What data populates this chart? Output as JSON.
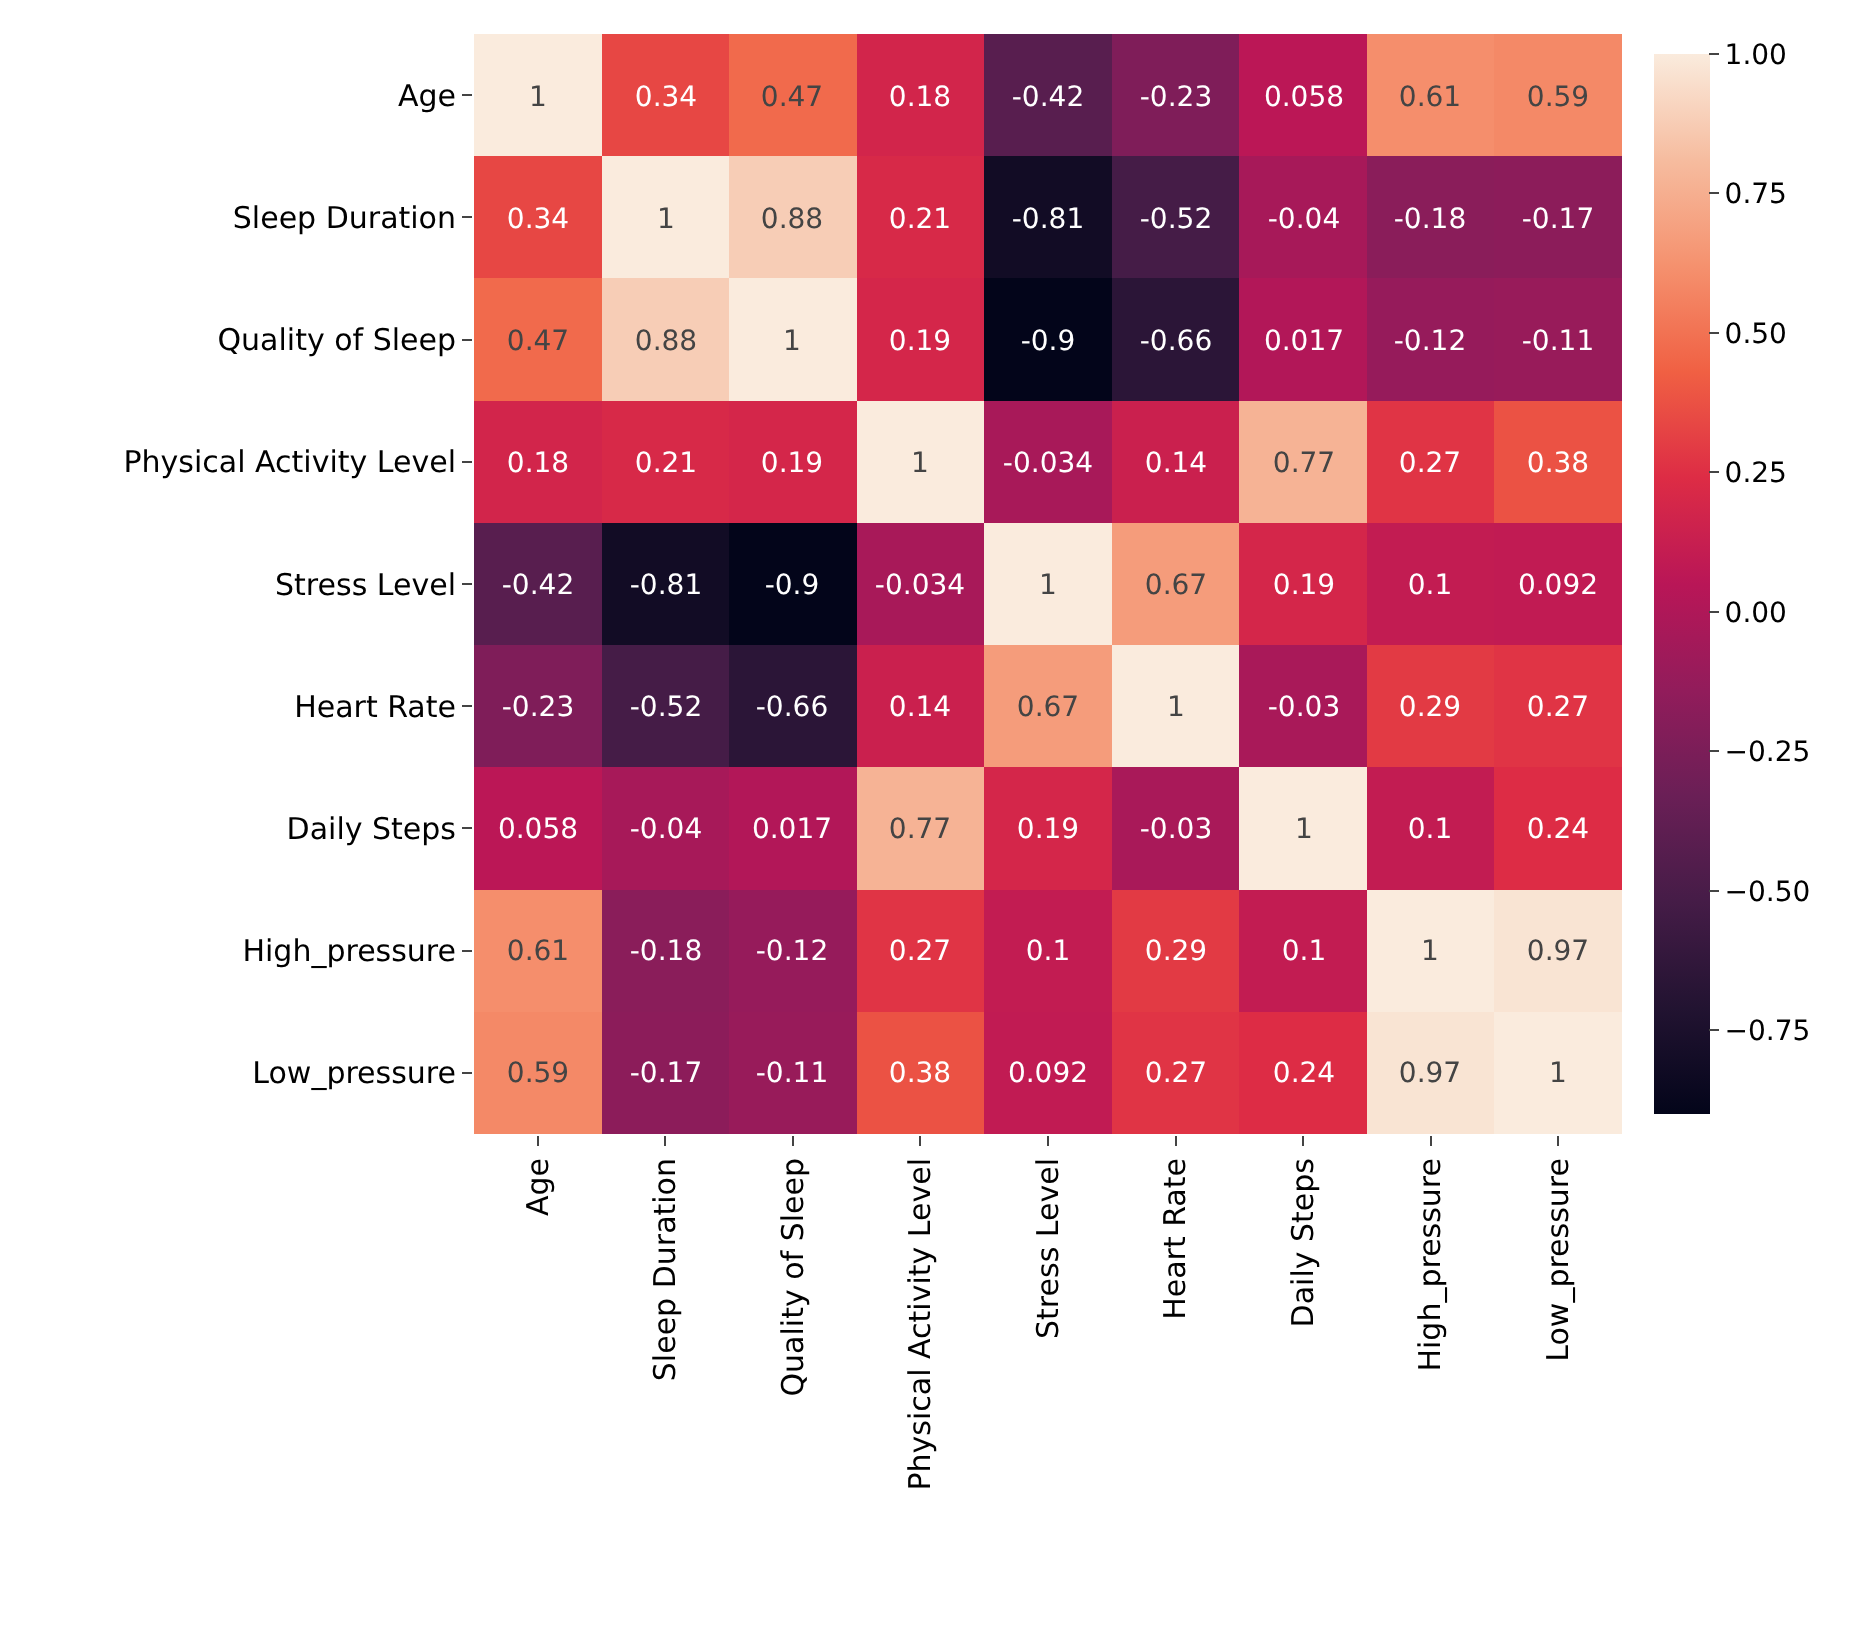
{
  "chart_data": {
    "type": "heatmap",
    "categories": [
      "Age",
      "Sleep Duration",
      "Quality of Sleep",
      "Physical Activity Level",
      "Stress Level",
      "Heart Rate",
      "Daily Steps",
      "High_pressure",
      "Low_pressure"
    ],
    "y_categories": [
      "Age",
      "Sleep Duration",
      "Quality of Sleep",
      "Physical Activity Level",
      "Stress Level",
      "Heart Rate",
      "Daily Steps",
      "High_pressure",
      "Low_pressure"
    ],
    "cells": [
      [
        1,
        0.34,
        0.47,
        0.18,
        -0.42,
        -0.23,
        0.058,
        0.61,
        0.59
      ],
      [
        0.34,
        1,
        0.88,
        0.21,
        -0.81,
        -0.52,
        -0.04,
        -0.18,
        -0.17
      ],
      [
        0.47,
        0.88,
        1,
        0.19,
        -0.9,
        -0.66,
        0.017,
        -0.12,
        -0.11
      ],
      [
        0.18,
        0.21,
        0.19,
        1,
        -0.034,
        0.14,
        0.77,
        0.27,
        0.38
      ],
      [
        -0.42,
        -0.81,
        -0.9,
        -0.034,
        1,
        0.67,
        0.19,
        0.1,
        0.092
      ],
      [
        -0.23,
        -0.52,
        -0.66,
        0.14,
        0.67,
        1,
        -0.03,
        0.29,
        0.27
      ],
      [
        0.058,
        -0.04,
        0.017,
        0.77,
        0.19,
        -0.03,
        1,
        0.1,
        0.24
      ],
      [
        0.61,
        -0.18,
        -0.12,
        0.27,
        0.1,
        0.29,
        0.1,
        1,
        0.97
      ],
      [
        0.59,
        -0.17,
        -0.11,
        0.38,
        0.092,
        0.27,
        0.24,
        0.97,
        1
      ]
    ],
    "data_labels": true,
    "clim": [
      -0.9,
      1
    ],
    "cticks": [
      {
        "value": -0.75,
        "label": "−0.75"
      },
      {
        "value": -0.5,
        "label": "−0.50"
      },
      {
        "value": -0.25,
        "label": "−0.25"
      },
      {
        "value": 0,
        "label": "0.00"
      },
      {
        "value": 0.25,
        "label": "0.25"
      },
      {
        "value": 0.5,
        "label": "0.50"
      },
      {
        "value": 0.75,
        "label": "0.75"
      },
      {
        "value": 1,
        "label": "1.00"
      }
    ]
  }
}
